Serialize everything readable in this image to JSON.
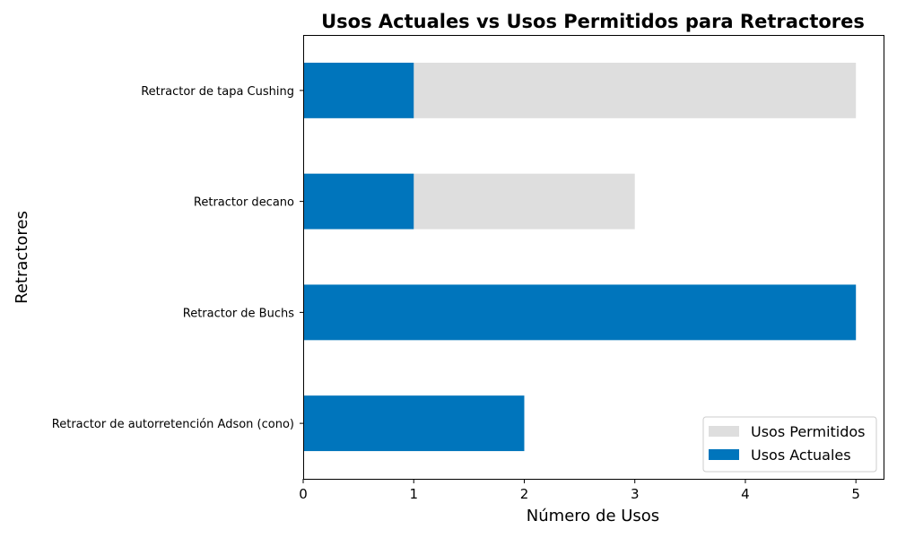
{
  "chart_data": {
    "type": "bar",
    "orientation": "horizontal",
    "stacking": "overlay",
    "title": "Usos Actuales vs Usos Permitidos para Retractores",
    "xlabel": "Número de Usos",
    "ylabel": "Retractores",
    "categories": [
      "Retractor de autorretención Adson (cono)",
      "Retractor de Buchs",
      "Retractor decano",
      "Retractor de tapa Cushing"
    ],
    "series": [
      {
        "name": "Usos Permitidos",
        "color": "#dedede",
        "values": [
          2,
          5,
          3,
          5
        ]
      },
      {
        "name": "Usos Actuales",
        "color": "#0075bc",
        "values": [
          2,
          5,
          1,
          1
        ]
      }
    ],
    "xlim": [
      0,
      5.25
    ],
    "xticks": [
      "0",
      "1",
      "2",
      "3",
      "4",
      "5"
    ],
    "grid": false,
    "legend_position": "lower-right"
  }
}
